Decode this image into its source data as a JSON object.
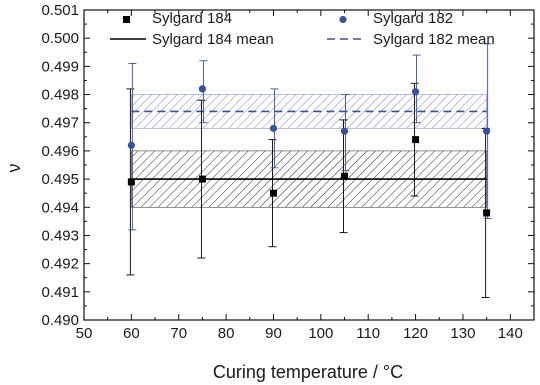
{
  "chart_data": {
    "type": "scatter",
    "xlabel": "Curing temperature / °C",
    "ylabel": "ν",
    "xlim": [
      50,
      145
    ],
    "ylim": [
      0.49,
      0.501
    ],
    "x_ticks": [
      50,
      60,
      70,
      80,
      90,
      100,
      110,
      120,
      130,
      140
    ],
    "x_tick_labels": [
      "50",
      "60",
      "70",
      "80",
      "90",
      "100",
      "110",
      "120",
      "130",
      "140"
    ],
    "y_ticks": [
      0.49,
      0.491,
      0.492,
      0.493,
      0.494,
      0.495,
      0.496,
      0.497,
      0.498,
      0.499,
      0.5,
      0.501
    ],
    "y_tick_labels": [
      "0.490",
      "0.491",
      "0.492",
      "0.493",
      "0.494",
      "0.495",
      "0.496",
      "0.497",
      "0.498",
      "0.499",
      "0.500",
      "0.501"
    ],
    "grid": false,
    "legend_position": "top",
    "series": [
      {
        "name": "Sylgard 184",
        "marker": "square",
        "color": "#000000",
        "x": [
          60,
          75,
          90,
          105,
          120,
          135
        ],
        "y": [
          0.4949,
          0.495,
          0.4945,
          0.4951,
          0.4964,
          0.4938
        ],
        "y_err_low": [
          0.4916,
          0.4922,
          0.4926,
          0.4931,
          0.4944,
          0.4908
        ],
        "y_err_high": [
          0.4982,
          0.4978,
          0.4964,
          0.4971,
          0.4984,
          0.4968
        ]
      },
      {
        "name": "Sylgard 182",
        "marker": "circle",
        "color": "#3b4fa0",
        "x": [
          60,
          75,
          90,
          105,
          120,
          135
        ],
        "y": [
          0.4962,
          0.4982,
          0.4968,
          0.4967,
          0.4981,
          0.4967
        ],
        "y_err_low": [
          0.4932,
          0.497,
          0.4954,
          0.4953,
          0.497,
          0.4936
        ],
        "y_err_high": [
          0.4991,
          0.4992,
          0.4982,
          0.498,
          0.4994,
          0.4998
        ]
      }
    ],
    "mean_lines": [
      {
        "name": "Sylgard 184 mean",
        "style": "solid",
        "color": "#000000",
        "value": 0.495,
        "band": [
          0.494,
          0.496
        ],
        "x_range": [
          60,
          135
        ]
      },
      {
        "name": "Sylgard 182 mean",
        "style": "dashed",
        "color": "#3b4fa0",
        "value": 0.4974,
        "band": [
          0.4968,
          0.498
        ],
        "x_range": [
          60,
          135
        ]
      }
    ]
  }
}
